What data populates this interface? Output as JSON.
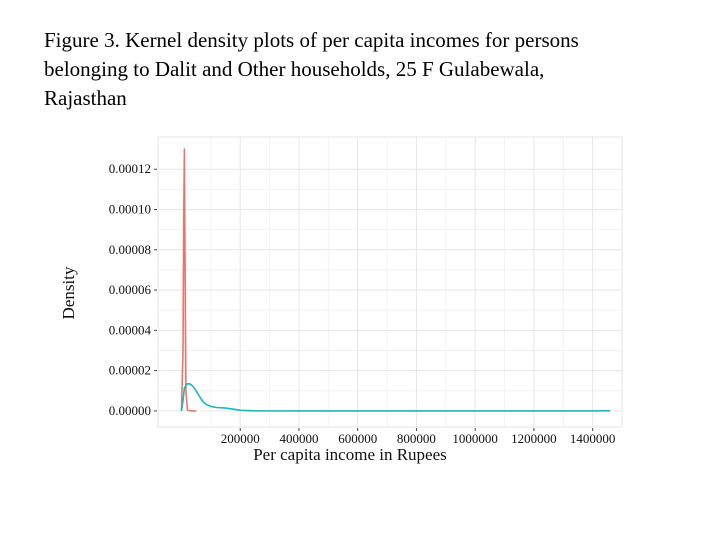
{
  "title_lines": [
    "Figure 3. Kernel density plots of per capita incomes for persons",
    "belonging to Dalit and Other households, 25 F Gulabewala,",
    "Rajasthan"
  ],
  "chart_data": {
    "type": "line",
    "xlabel": "Per capita income in Rupees",
    "ylabel": "Density",
    "xlim": [
      -80000,
      1500000
    ],
    "ylim": [
      -8e-06,
      0.000136
    ],
    "grid": true,
    "y_ticks": [
      0,
      2e-05,
      4e-05,
      6e-05,
      8e-05,
      0.0001,
      0.00012
    ],
    "y_tick_labels": [
      "0.00000",
      "0.00002",
      "0.00004",
      "0.00006",
      "0.00008",
      "0.00010",
      "0.00012"
    ],
    "x_ticks": [
      200000,
      400000,
      600000,
      800000,
      1000000,
      1200000,
      1400000
    ],
    "x_tick_labels": [
      "200000",
      "400000",
      "600000",
      "800000",
      "1000000",
      "1200000",
      "1400000"
    ],
    "series": [
      {
        "color": "#e8766f",
        "x": [
          0,
          5000,
          8000,
          10000,
          12000,
          15000,
          20000,
          30000,
          50000
        ],
        "y": [
          0,
          3e-05,
          0.0001,
          0.00013,
          8e-05,
          1e-05,
          5e-07,
          0,
          0
        ]
      },
      {
        "color": "#1fb5b9",
        "x": [
          0,
          5000,
          10000,
          20000,
          30000,
          40000,
          50000,
          60000,
          70000,
          80000,
          100000,
          120000,
          150000,
          180000,
          200000,
          250000,
          400000,
          600000,
          800000,
          1000000,
          1200000,
          1400000,
          1460000
        ],
        "y": [
          0,
          5e-06,
          1.15e-05,
          1.35e-05,
          1.33e-05,
          1.2e-05,
          1e-05,
          7.5e-06,
          5.2e-06,
          3.5e-06,
          2.2e-06,
          1.7e-06,
          1.4e-06,
          8e-07,
          3e-07,
          5e-08,
          0,
          0,
          0,
          0,
          0,
          0,
          1e-07
        ]
      }
    ]
  }
}
